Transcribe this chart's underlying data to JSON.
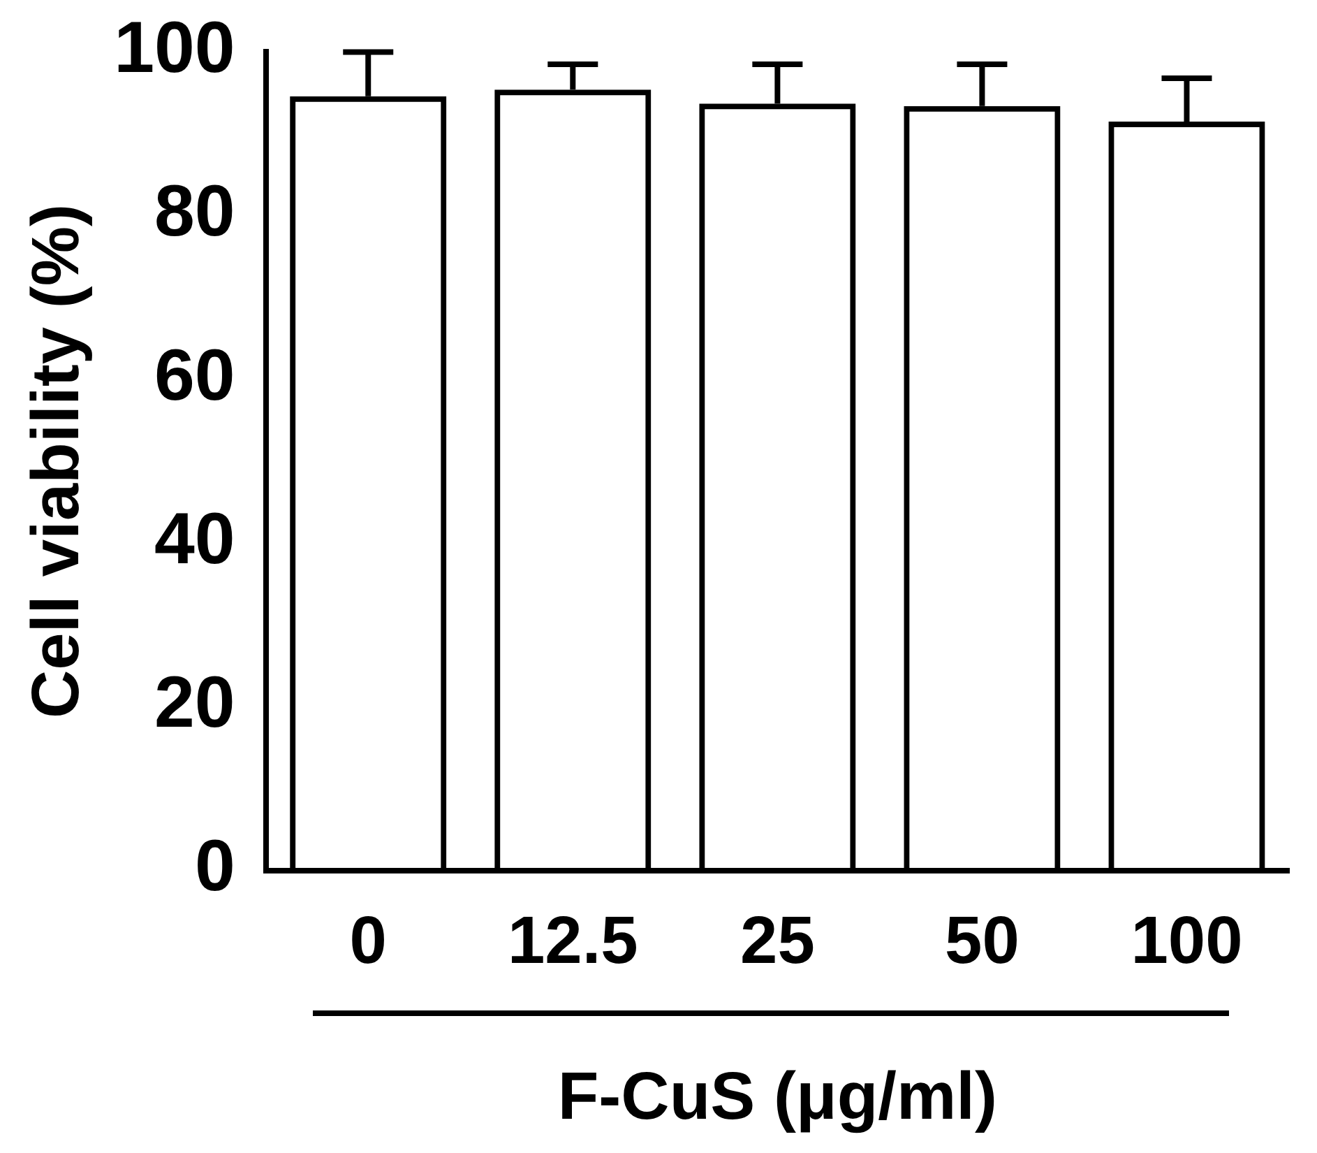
{
  "chart_data": {
    "type": "bar",
    "xlabel": "F-CuS (μg/ml)",
    "ylabel": "Cell viability (%)",
    "categories": [
      "0",
      "12.5",
      "25",
      "50",
      "100"
    ],
    "values": [
      94.6,
      95.4,
      93.7,
      93.4,
      91.5
    ],
    "errors": [
      [
        94.6,
        100
      ],
      [
        95.4,
        98.5
      ],
      [
        93.7,
        98.5
      ],
      [
        93.4,
        98.5
      ],
      [
        91.5,
        96.8
      ]
    ],
    "color": "#000000",
    "ylim": [
      0,
      100
    ],
    "yticks": [
      0,
      20,
      40,
      60,
      80,
      100
    ],
    "grid": false,
    "legend": false
  }
}
